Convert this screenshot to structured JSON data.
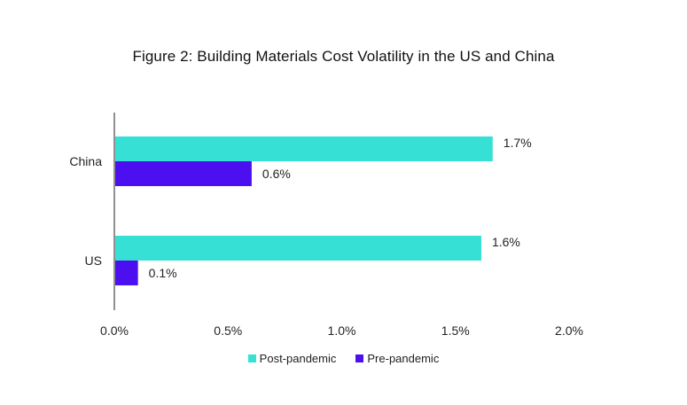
{
  "chart_data": {
    "type": "bar",
    "orientation": "horizontal",
    "title": "Figure 2: Building Materials Cost Volatility in the US and China",
    "categories": [
      "China",
      "US"
    ],
    "series": [
      {
        "name": "Post-pandemic",
        "color": "#36e0d4",
        "values": [
          1.66,
          1.61
        ],
        "labels": [
          "1.7%",
          "1.6%"
        ]
      },
      {
        "name": "Pre-pandemic",
        "color": "#4b0ff0",
        "values": [
          0.6,
          0.1
        ],
        "labels": [
          "0.6%",
          "0.1%"
        ]
      }
    ],
    "xlim": [
      0,
      2.0
    ],
    "xticks": [
      0,
      0.5,
      1.0,
      1.5,
      2.0
    ],
    "xtick_labels": [
      "0.0%",
      "0.5%",
      "1.0%",
      "1.5%",
      "2.0%"
    ],
    "xlabel": "",
    "ylabel": "",
    "legend_position": "bottom"
  }
}
